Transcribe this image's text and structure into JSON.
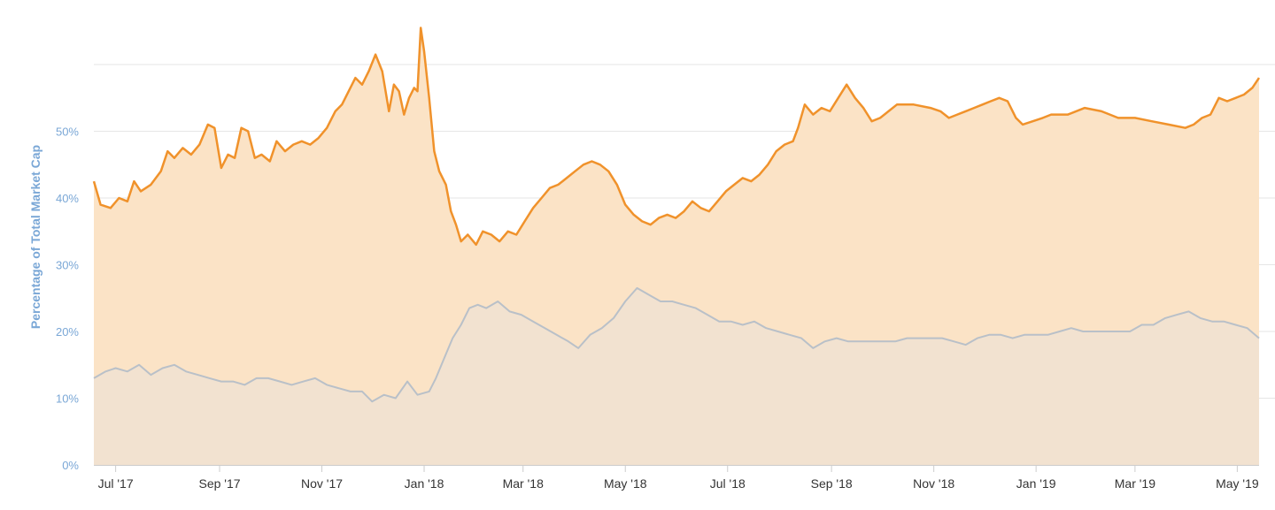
{
  "chart_data": {
    "type": "area",
    "title": "",
    "xlabel": "",
    "ylabel": "Percentage of Total Market Cap",
    "ylim": [
      0,
      60
    ],
    "y_ticks": [
      "0%",
      "10%",
      "20%",
      "30%",
      "40%",
      "50%"
    ],
    "y_tick_values": [
      0,
      10,
      20,
      30,
      40,
      50
    ],
    "x_range": [
      "2017-06-18",
      "2019-05-14"
    ],
    "x_ticks": [
      {
        "label": "Jul '17",
        "date": "2017-07-01"
      },
      {
        "label": "Sep '17",
        "date": "2017-09-01"
      },
      {
        "label": "Nov '17",
        "date": "2017-11-01"
      },
      {
        "label": "Jan '18",
        "date": "2018-01-01"
      },
      {
        "label": "Mar '18",
        "date": "2018-03-01"
      },
      {
        "label": "May '18",
        "date": "2018-05-01"
      },
      {
        "label": "Jul '18",
        "date": "2018-07-01"
      },
      {
        "label": "Sep '18",
        "date": "2018-09-01"
      },
      {
        "label": "Nov '18",
        "date": "2018-11-01"
      },
      {
        "label": "Jan '19",
        "date": "2019-01-01"
      },
      {
        "label": "Mar '19",
        "date": "2019-03-01"
      },
      {
        "label": "May '19",
        "date": "2019-05-01"
      }
    ],
    "grid": true,
    "legend": "none",
    "series": [
      {
        "color": "#f0922b",
        "fill": "#fbe3c6",
        "points": [
          [
            "2017-06-18",
            42.5
          ],
          [
            "2017-06-22",
            39.0
          ],
          [
            "2017-06-28",
            38.5
          ],
          [
            "2017-07-03",
            40.0
          ],
          [
            "2017-07-08",
            39.5
          ],
          [
            "2017-07-12",
            42.5
          ],
          [
            "2017-07-16",
            41.0
          ],
          [
            "2017-07-22",
            42.0
          ],
          [
            "2017-07-28",
            44.0
          ],
          [
            "2017-08-01",
            47.0
          ],
          [
            "2017-08-05",
            46.0
          ],
          [
            "2017-08-10",
            47.5
          ],
          [
            "2017-08-15",
            46.5
          ],
          [
            "2017-08-20",
            48.0
          ],
          [
            "2017-08-25",
            51.0
          ],
          [
            "2017-08-29",
            50.5
          ],
          [
            "2017-09-02",
            44.5
          ],
          [
            "2017-09-06",
            46.5
          ],
          [
            "2017-09-10",
            46.0
          ],
          [
            "2017-09-14",
            50.5
          ],
          [
            "2017-09-18",
            50.0
          ],
          [
            "2017-09-22",
            46.0
          ],
          [
            "2017-09-26",
            46.5
          ],
          [
            "2017-10-01",
            45.5
          ],
          [
            "2017-10-05",
            48.5
          ],
          [
            "2017-10-10",
            47.0
          ],
          [
            "2017-10-15",
            48.0
          ],
          [
            "2017-10-20",
            48.5
          ],
          [
            "2017-10-25",
            48.0
          ],
          [
            "2017-10-30",
            49.0
          ],
          [
            "2017-11-04",
            50.5
          ],
          [
            "2017-11-09",
            53.0
          ],
          [
            "2017-11-13",
            54.0
          ],
          [
            "2017-11-17",
            56.0
          ],
          [
            "2017-11-21",
            58.0
          ],
          [
            "2017-11-25",
            57.0
          ],
          [
            "2017-11-29",
            59.0
          ],
          [
            "2017-12-03",
            61.5
          ],
          [
            "2017-12-07",
            59.0
          ],
          [
            "2017-12-11",
            53.0
          ],
          [
            "2017-12-14",
            57.0
          ],
          [
            "2017-12-17",
            56.0
          ],
          [
            "2017-12-20",
            52.5
          ],
          [
            "2017-12-23",
            55.0
          ],
          [
            "2017-12-26",
            56.5
          ],
          [
            "2017-12-28",
            56.0
          ],
          [
            "2017-12-30",
            65.5
          ],
          [
            "2018-01-01",
            62.0
          ],
          [
            "2018-01-04",
            55.0
          ],
          [
            "2018-01-07",
            47.0
          ],
          [
            "2018-01-10",
            44.0
          ],
          [
            "2018-01-14",
            42.0
          ],
          [
            "2018-01-17",
            38.0
          ],
          [
            "2018-01-20",
            36.0
          ],
          [
            "2018-01-23",
            33.5
          ],
          [
            "2018-01-27",
            34.5
          ],
          [
            "2018-02-01",
            33.0
          ],
          [
            "2018-02-05",
            35.0
          ],
          [
            "2018-02-10",
            34.5
          ],
          [
            "2018-02-15",
            33.5
          ],
          [
            "2018-02-20",
            35.0
          ],
          [
            "2018-02-25",
            34.5
          ],
          [
            "2018-03-02",
            36.5
          ],
          [
            "2018-03-07",
            38.5
          ],
          [
            "2018-03-12",
            40.0
          ],
          [
            "2018-03-17",
            41.5
          ],
          [
            "2018-03-22",
            42.0
          ],
          [
            "2018-03-27",
            43.0
          ],
          [
            "2018-04-01",
            44.0
          ],
          [
            "2018-04-06",
            45.0
          ],
          [
            "2018-04-11",
            45.5
          ],
          [
            "2018-04-16",
            45.0
          ],
          [
            "2018-04-21",
            44.0
          ],
          [
            "2018-04-26",
            42.0
          ],
          [
            "2018-05-01",
            39.0
          ],
          [
            "2018-05-06",
            37.5
          ],
          [
            "2018-05-11",
            36.5
          ],
          [
            "2018-05-16",
            36.0
          ],
          [
            "2018-05-21",
            37.0
          ],
          [
            "2018-05-26",
            37.5
          ],
          [
            "2018-05-31",
            37.0
          ],
          [
            "2018-06-05",
            38.0
          ],
          [
            "2018-06-10",
            39.5
          ],
          [
            "2018-06-15",
            38.5
          ],
          [
            "2018-06-20",
            38.0
          ],
          [
            "2018-06-25",
            39.5
          ],
          [
            "2018-06-30",
            41.0
          ],
          [
            "2018-07-05",
            42.0
          ],
          [
            "2018-07-10",
            43.0
          ],
          [
            "2018-07-15",
            42.5
          ],
          [
            "2018-07-20",
            43.5
          ],
          [
            "2018-07-25",
            45.0
          ],
          [
            "2018-07-30",
            47.0
          ],
          [
            "2018-08-04",
            48.0
          ],
          [
            "2018-08-09",
            48.5
          ],
          [
            "2018-08-12",
            50.5
          ],
          [
            "2018-08-16",
            54.0
          ],
          [
            "2018-08-21",
            52.5
          ],
          [
            "2018-08-26",
            53.5
          ],
          [
            "2018-08-31",
            53.0
          ],
          [
            "2018-09-05",
            55.0
          ],
          [
            "2018-09-10",
            57.0
          ],
          [
            "2018-09-15",
            55.0
          ],
          [
            "2018-09-20",
            53.5
          ],
          [
            "2018-09-25",
            51.5
          ],
          [
            "2018-09-30",
            52.0
          ],
          [
            "2018-10-05",
            53.0
          ],
          [
            "2018-10-10",
            54.0
          ],
          [
            "2018-10-20",
            54.0
          ],
          [
            "2018-10-30",
            53.5
          ],
          [
            "2018-11-05",
            53.0
          ],
          [
            "2018-11-10",
            52.0
          ],
          [
            "2018-11-15",
            52.5
          ],
          [
            "2018-11-20",
            53.0
          ],
          [
            "2018-11-25",
            53.5
          ],
          [
            "2018-11-30",
            54.0
          ],
          [
            "2018-12-05",
            54.5
          ],
          [
            "2018-12-10",
            55.0
          ],
          [
            "2018-12-15",
            54.5
          ],
          [
            "2018-12-20",
            52.0
          ],
          [
            "2018-12-24",
            51.0
          ],
          [
            "2018-12-30",
            51.5
          ],
          [
            "2019-01-05",
            52.0
          ],
          [
            "2019-01-10",
            52.5
          ],
          [
            "2019-01-20",
            52.5
          ],
          [
            "2019-01-30",
            53.5
          ],
          [
            "2019-02-09",
            53.0
          ],
          [
            "2019-02-19",
            52.0
          ],
          [
            "2019-03-01",
            52.0
          ],
          [
            "2019-03-11",
            51.5
          ],
          [
            "2019-03-21",
            51.0
          ],
          [
            "2019-03-31",
            50.5
          ],
          [
            "2019-04-05",
            51.0
          ],
          [
            "2019-04-10",
            52.0
          ],
          [
            "2019-04-15",
            52.5
          ],
          [
            "2019-04-20",
            55.0
          ],
          [
            "2019-04-25",
            54.5
          ],
          [
            "2019-04-30",
            55.0
          ],
          [
            "2019-05-05",
            55.5
          ],
          [
            "2019-05-10",
            56.5
          ],
          [
            "2019-05-14",
            58.0
          ]
        ]
      },
      {
        "color": "#b9c0c8",
        "fill": "#f2e2d0",
        "points": [
          [
            "2017-06-18",
            13.0
          ],
          [
            "2017-06-25",
            14.0
          ],
          [
            "2017-07-01",
            14.5
          ],
          [
            "2017-07-08",
            14.0
          ],
          [
            "2017-07-15",
            15.0
          ],
          [
            "2017-07-22",
            13.5
          ],
          [
            "2017-07-29",
            14.5
          ],
          [
            "2017-08-05",
            15.0
          ],
          [
            "2017-08-12",
            14.0
          ],
          [
            "2017-08-19",
            13.5
          ],
          [
            "2017-08-26",
            13.0
          ],
          [
            "2017-09-02",
            12.5
          ],
          [
            "2017-09-09",
            12.5
          ],
          [
            "2017-09-16",
            12.0
          ],
          [
            "2017-09-23",
            13.0
          ],
          [
            "2017-09-30",
            13.0
          ],
          [
            "2017-10-07",
            12.5
          ],
          [
            "2017-10-14",
            12.0
          ],
          [
            "2017-10-21",
            12.5
          ],
          [
            "2017-10-28",
            13.0
          ],
          [
            "2017-11-04",
            12.0
          ],
          [
            "2017-11-11",
            11.5
          ],
          [
            "2017-11-18",
            11.0
          ],
          [
            "2017-11-25",
            11.0
          ],
          [
            "2017-12-01",
            9.5
          ],
          [
            "2017-12-08",
            10.5
          ],
          [
            "2017-12-15",
            10.0
          ],
          [
            "2017-12-22",
            12.5
          ],
          [
            "2017-12-28",
            10.5
          ],
          [
            "2018-01-04",
            11.0
          ],
          [
            "2018-01-08",
            13.0
          ],
          [
            "2018-01-13",
            16.0
          ],
          [
            "2018-01-18",
            19.0
          ],
          [
            "2018-01-23",
            21.0
          ],
          [
            "2018-01-28",
            23.5
          ],
          [
            "2018-02-02",
            24.0
          ],
          [
            "2018-02-07",
            23.5
          ],
          [
            "2018-02-14",
            24.5
          ],
          [
            "2018-02-21",
            23.0
          ],
          [
            "2018-02-28",
            22.5
          ],
          [
            "2018-03-07",
            21.5
          ],
          [
            "2018-03-14",
            20.5
          ],
          [
            "2018-03-21",
            19.5
          ],
          [
            "2018-03-28",
            18.5
          ],
          [
            "2018-04-03",
            17.5
          ],
          [
            "2018-04-10",
            19.5
          ],
          [
            "2018-04-17",
            20.5
          ],
          [
            "2018-04-24",
            22.0
          ],
          [
            "2018-05-01",
            24.5
          ],
          [
            "2018-05-08",
            26.5
          ],
          [
            "2018-05-15",
            25.5
          ],
          [
            "2018-05-22",
            24.5
          ],
          [
            "2018-05-29",
            24.5
          ],
          [
            "2018-06-05",
            24.0
          ],
          [
            "2018-06-12",
            23.5
          ],
          [
            "2018-06-19",
            22.5
          ],
          [
            "2018-06-26",
            21.5
          ],
          [
            "2018-07-03",
            21.5
          ],
          [
            "2018-07-10",
            21.0
          ],
          [
            "2018-07-17",
            21.5
          ],
          [
            "2018-07-24",
            20.5
          ],
          [
            "2018-07-31",
            20.0
          ],
          [
            "2018-08-07",
            19.5
          ],
          [
            "2018-08-14",
            19.0
          ],
          [
            "2018-08-21",
            17.5
          ],
          [
            "2018-08-28",
            18.5
          ],
          [
            "2018-09-04",
            19.0
          ],
          [
            "2018-09-11",
            18.5
          ],
          [
            "2018-09-18",
            18.5
          ],
          [
            "2018-09-25",
            18.5
          ],
          [
            "2018-10-02",
            18.5
          ],
          [
            "2018-10-09",
            18.5
          ],
          [
            "2018-10-16",
            19.0
          ],
          [
            "2018-10-23",
            19.0
          ],
          [
            "2018-10-30",
            19.0
          ],
          [
            "2018-11-06",
            19.0
          ],
          [
            "2018-11-13",
            18.5
          ],
          [
            "2018-11-20",
            18.0
          ],
          [
            "2018-11-27",
            19.0
          ],
          [
            "2018-12-04",
            19.5
          ],
          [
            "2018-12-11",
            19.5
          ],
          [
            "2018-12-18",
            19.0
          ],
          [
            "2018-12-25",
            19.5
          ],
          [
            "2019-01-01",
            19.5
          ],
          [
            "2019-01-08",
            19.5
          ],
          [
            "2019-01-15",
            20.0
          ],
          [
            "2019-01-22",
            20.5
          ],
          [
            "2019-01-29",
            20.0
          ],
          [
            "2019-02-05",
            20.0
          ],
          [
            "2019-02-12",
            20.0
          ],
          [
            "2019-02-19",
            20.0
          ],
          [
            "2019-02-26",
            20.0
          ],
          [
            "2019-03-05",
            21.0
          ],
          [
            "2019-03-12",
            21.0
          ],
          [
            "2019-03-19",
            22.0
          ],
          [
            "2019-03-26",
            22.5
          ],
          [
            "2019-04-02",
            23.0
          ],
          [
            "2019-04-09",
            22.0
          ],
          [
            "2019-04-16",
            21.5
          ],
          [
            "2019-04-23",
            21.5
          ],
          [
            "2019-04-30",
            21.0
          ],
          [
            "2019-05-07",
            20.5
          ],
          [
            "2019-05-14",
            19.0
          ]
        ]
      }
    ]
  }
}
